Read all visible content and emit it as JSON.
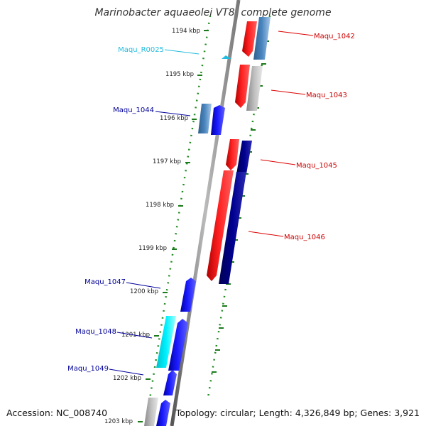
{
  "title": "Marinobacter aquaeolei VT8, complete genome",
  "footer": {
    "accession": "Accession: NC_008740",
    "topology": "Topology: circular; Length: 4,326,849 bp; Genes: 3,921"
  },
  "ticks": [
    "1194 kbp",
    "1195 kbp",
    "1196 kbp",
    "1197 kbp",
    "1198 kbp",
    "1199 kbp",
    "1200 kbp",
    "1201 kbp",
    "1202 kbp",
    "1203 kbp"
  ],
  "tick_positions_kbp": [
    1194,
    1195,
    1196,
    1197,
    1198,
    1199,
    1200,
    1201,
    1202,
    1203
  ],
  "genes": [
    {
      "label": "Maqu_1042",
      "color": "#cc0000"
    },
    {
      "label": "Maqu_R0025",
      "color": "#22bbdd"
    },
    {
      "label": "Maqu_1043",
      "color": "#cc0000"
    },
    {
      "label": "Maqu_1044",
      "color": "#000099"
    },
    {
      "label": "Maqu_1045",
      "color": "#cc0000"
    },
    {
      "label": "Maqu_1046",
      "color": "#cc0000"
    },
    {
      "label": "Maqu_1047",
      "color": "#000099"
    },
    {
      "label": "Maqu_1048",
      "color": "#000099"
    },
    {
      "label": "Maqu_1049",
      "color": "#000099"
    }
  ],
  "colors": {
    "forward_strand": "#ff0000",
    "reverse_strand": "#0000ee",
    "dark_reverse": "#000080",
    "steel_blue": "#4682b4",
    "gray_gene": "#aaaaaa",
    "rna": "#00e5ee",
    "backbone": "#888888",
    "dotted_ring": "#228b22"
  }
}
